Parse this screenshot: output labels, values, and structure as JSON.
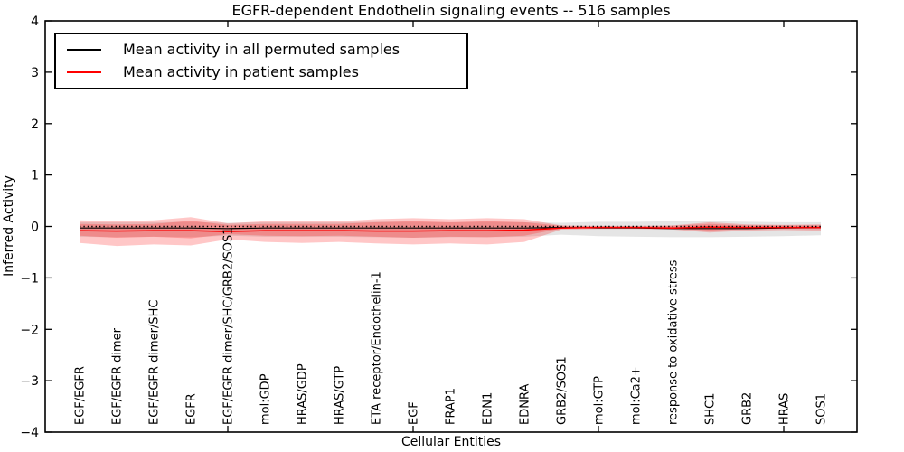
{
  "title": "EGFR-dependent Endothelin signaling events -- 516 samples",
  "axes": {
    "ylabel": "Inferred Activity",
    "xlabel": "Cellular Entities",
    "ytick_values": [
      4,
      3,
      2,
      1,
      0,
      -1,
      -2,
      -3,
      -4
    ],
    "ytick_labels": [
      "4",
      "3",
      "2",
      "1",
      "0",
      "−1",
      "−2",
      "−3",
      "−4"
    ],
    "ylim": [
      -4,
      4
    ]
  },
  "legend": [
    {
      "label": "Mean activity in all permuted samples",
      "color": "#000000"
    },
    {
      "label": "Mean activity in patient samples",
      "color": "#ff0000"
    }
  ],
  "chart_data": {
    "type": "line",
    "title": "EGFR-dependent Endothelin signaling events -- 516 samples",
    "xlabel": "Cellular Entities",
    "ylabel": "Inferred Activity",
    "ylim": [
      -4,
      4
    ],
    "grid": false,
    "legend_position": "upper left",
    "zero_line": {
      "style": "dotted",
      "value": 0,
      "color": "#000000"
    },
    "xtick_indices": [
      4,
      9,
      14,
      19
    ],
    "categories": [
      "EGF/EGFR",
      "EGF/EGFR dimer",
      "EGF/EGFR dimer/SHC",
      "EGFR",
      "EGF/EGFR dimer/SHC/GRB2/SOS1",
      "mol:GDP",
      "HRAS/GDP",
      "HRAS/GTP",
      "ETA receptor/Endothelin-1",
      "EGF",
      "FRAP1",
      "EDN1",
      "EDNRA",
      "GRB2/SOS1",
      "mol:GTP",
      "mol:Ca2+",
      "response to oxidative stress",
      "SHC1",
      "GRB2",
      "HRAS",
      "SOS1"
    ],
    "series": [
      {
        "name": "Mean activity in all permuted samples",
        "color": "#000000",
        "width": 1.2,
        "values": [
          -0.03,
          -0.03,
          -0.03,
          -0.03,
          -0.04,
          -0.03,
          -0.03,
          -0.03,
          -0.03,
          -0.03,
          -0.03,
          -0.03,
          -0.03,
          -0.02,
          -0.03,
          -0.03,
          -0.04,
          -0.04,
          -0.04,
          -0.03,
          -0.02
        ]
      },
      {
        "name": "Mean activity in patient samples",
        "color": "#ff0000",
        "width": 1.5,
        "values": [
          -0.08,
          -0.09,
          -0.08,
          -0.08,
          -0.1,
          -0.08,
          -0.08,
          -0.08,
          -0.09,
          -0.09,
          -0.08,
          -0.08,
          -0.07,
          -0.03,
          -0.02,
          -0.02,
          -0.03,
          -0.01,
          -0.02,
          -0.02,
          -0.02
        ]
      }
    ],
    "bands": [
      {
        "name": "permuted-samples-band",
        "color": "rgba(0,0,0,0.10)",
        "top": [
          0.08,
          0.08,
          0.08,
          0.09,
          0.07,
          0.08,
          0.08,
          0.08,
          0.09,
          0.09,
          0.08,
          0.09,
          0.08,
          0.07,
          0.09,
          0.09,
          0.1,
          0.1,
          0.09,
          0.08,
          0.08
        ],
        "bottom": [
          -0.2,
          -0.21,
          -0.2,
          -0.21,
          -0.18,
          -0.2,
          -0.2,
          -0.2,
          -0.21,
          -0.22,
          -0.21,
          -0.21,
          -0.2,
          -0.16,
          -0.19,
          -0.2,
          -0.21,
          -0.21,
          -0.2,
          -0.19,
          -0.17
        ]
      },
      {
        "name": "patient-samples-band-outer",
        "color": "rgba(255,0,0,0.22)",
        "top": [
          0.12,
          0.1,
          0.12,
          0.18,
          0.06,
          0.1,
          0.1,
          0.1,
          0.14,
          0.16,
          0.14,
          0.16,
          0.14,
          0.02,
          0.01,
          0.01,
          0.02,
          0.08,
          0.04,
          0.03,
          0.04
        ],
        "bottom": [
          -0.32,
          -0.38,
          -0.35,
          -0.37,
          -0.25,
          -0.3,
          -0.32,
          -0.3,
          -0.33,
          -0.35,
          -0.33,
          -0.35,
          -0.3,
          -0.06,
          -0.05,
          -0.05,
          -0.06,
          -0.12,
          -0.08,
          -0.07,
          -0.08
        ]
      },
      {
        "name": "patient-samples-band-inner",
        "color": "rgba(255,0,0,0.22)",
        "top": [
          0.05,
          0.04,
          0.05,
          0.11,
          0.03,
          0.05,
          0.05,
          0.05,
          0.08,
          0.1,
          0.08,
          0.1,
          0.08,
          0.01,
          0.0,
          0.0,
          0.01,
          0.05,
          0.02,
          0.02,
          0.02
        ],
        "bottom": [
          -0.18,
          -0.22,
          -0.2,
          -0.23,
          -0.15,
          -0.18,
          -0.19,
          -0.18,
          -0.2,
          -0.22,
          -0.2,
          -0.21,
          -0.18,
          -0.04,
          -0.03,
          -0.03,
          -0.04,
          -0.08,
          -0.05,
          -0.04,
          -0.05
        ]
      }
    ]
  }
}
